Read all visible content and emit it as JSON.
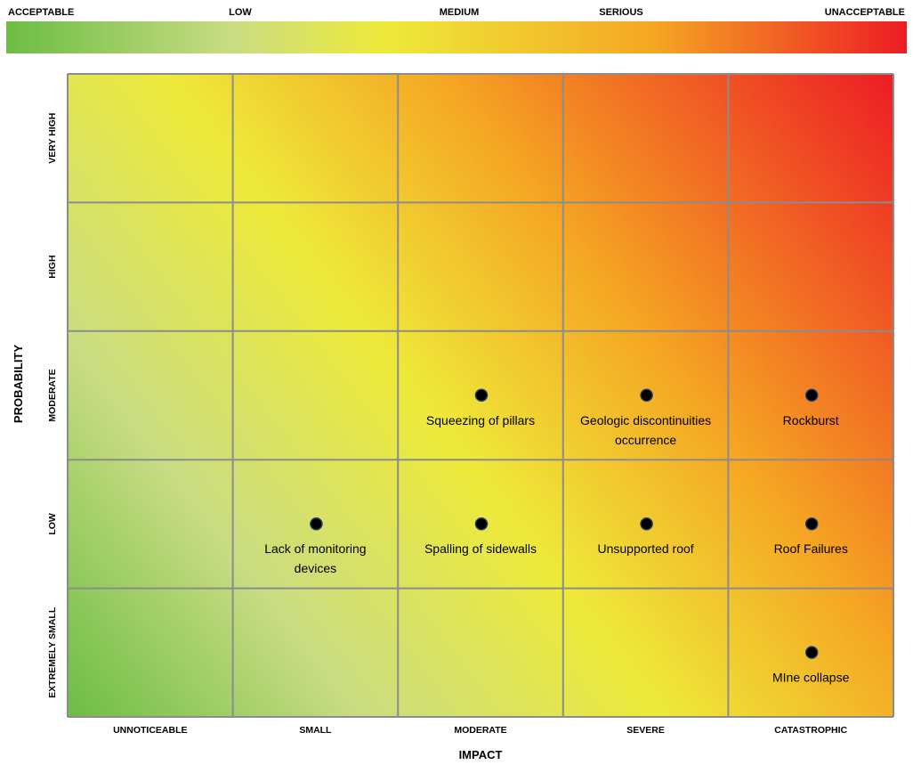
{
  "chart_data": {
    "type": "heatmap",
    "title": "",
    "xlabel": "IMPACT",
    "ylabel": "PROBABILITY",
    "x_categories": [
      "UNNOTICEABLE",
      "SMALL",
      "MODERATE",
      "SEVERE",
      "CATASTROPHIC"
    ],
    "y_categories": [
      "EXTREMELY SMALL",
      "LOW",
      "MODERATE",
      "HIGH",
      "VERY HIGH"
    ],
    "color_scale": {
      "labels": [
        "ACCEPTABLE",
        "LOW",
        "MEDIUM",
        "SERIOUS",
        "UNACCEPTABLE"
      ],
      "colors": [
        "#6cbd45",
        "#c9dc82",
        "#eeea3a",
        "#f5a623",
        "#ed1c24"
      ]
    },
    "points": [
      {
        "x": "MODERATE",
        "y": "MODERATE",
        "label": [
          "Squeezing of pillars"
        ]
      },
      {
        "x": "SEVERE",
        "y": "MODERATE",
        "label": [
          "Geologic discontinuities",
          "occurrence"
        ]
      },
      {
        "x": "CATASTROPHIC",
        "y": "MODERATE",
        "label": [
          "Rockburst"
        ]
      },
      {
        "x": "SMALL",
        "y": "LOW",
        "label": [
          "Lack of  monitoring",
          "devices"
        ]
      },
      {
        "x": "MODERATE",
        "y": "LOW",
        "label": [
          "Spalling of sidewalls"
        ]
      },
      {
        "x": "SEVERE",
        "y": "LOW",
        "label": [
          "Unsupported roof"
        ]
      },
      {
        "x": "CATASTROPHIC",
        "y": "LOW",
        "label": [
          "Roof Failures"
        ]
      },
      {
        "x": "CATASTROPHIC",
        "y": "EXTREMELY SMALL",
        "label": [
          "MIne collapse"
        ]
      }
    ]
  }
}
